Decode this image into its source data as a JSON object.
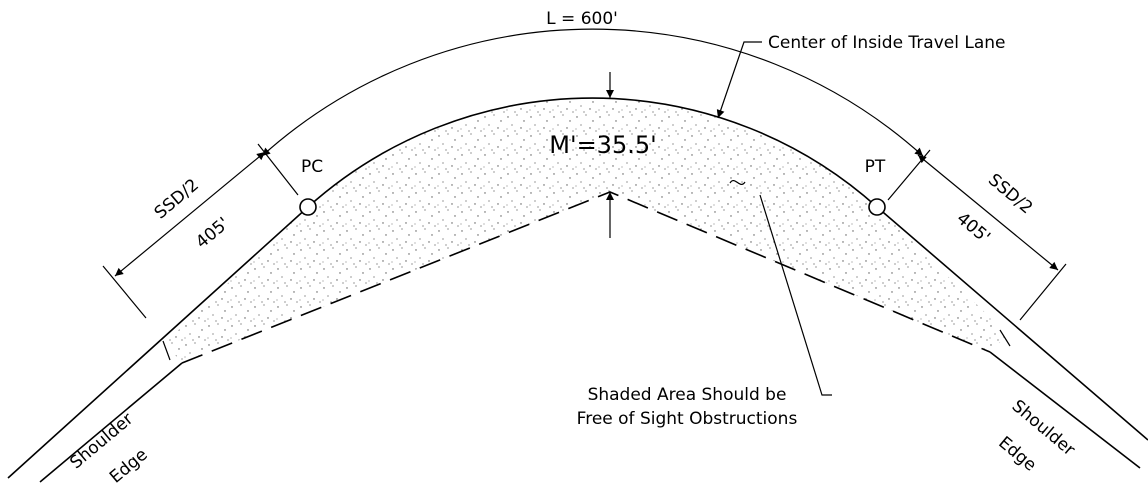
{
  "labels": {
    "curve_length": "L = 600'",
    "center_lane": "Center of Inside Travel Lane",
    "middle_ordinate": "M'=35.5'",
    "pc": "PC",
    "pt": "PT",
    "left_ssd": {
      "name": "SSD/2",
      "value": "405'"
    },
    "right_ssd": {
      "name": "SSD/2",
      "value": "405'"
    },
    "note": [
      "Shaded Area Should be",
      "Free of Sight Obstructions"
    ],
    "left_shoulder": [
      "Shoulder",
      "Edge"
    ],
    "right_shoulder": [
      "Shoulder",
      "Edge"
    ]
  }
}
